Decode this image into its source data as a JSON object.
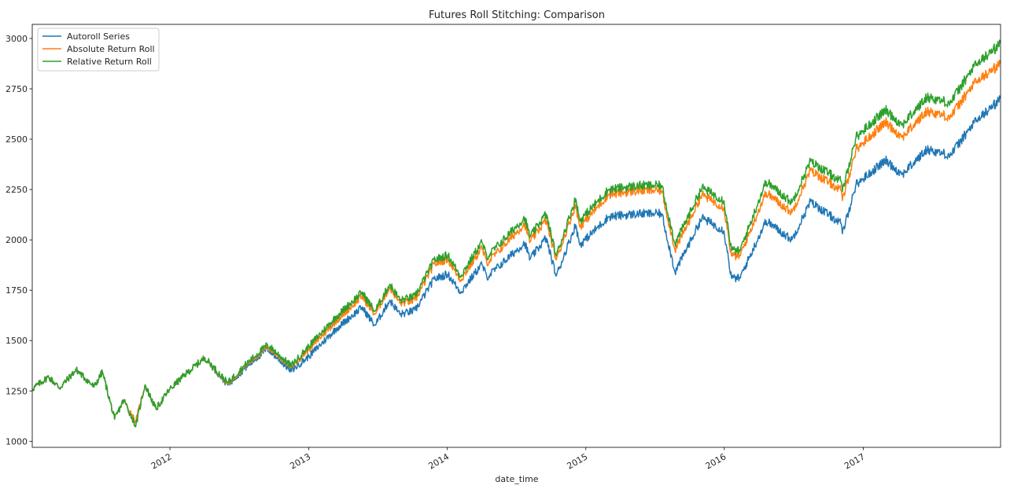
{
  "chart_data": {
    "type": "line",
    "title": "Futures Roll Stitching: Comparison",
    "xlabel": "date_time",
    "ylabel": "",
    "xlim": [
      "2011-01-03",
      "2017-12-29"
    ],
    "ylim": [
      970,
      3070
    ],
    "x_ticks": [
      {
        "date": "2012-01-01",
        "label": "2012"
      },
      {
        "date": "2013-01-01",
        "label": "2013"
      },
      {
        "date": "2014-01-01",
        "label": "2014"
      },
      {
        "date": "2015-01-01",
        "label": "2015"
      },
      {
        "date": "2016-01-01",
        "label": "2016"
      },
      {
        "date": "2017-01-01",
        "label": "2017"
      }
    ],
    "y_ticks": [
      1000,
      1250,
      1500,
      1750,
      2000,
      2250,
      2500,
      2750,
      3000
    ],
    "grid": false,
    "legend_position": "top-left",
    "series": [
      {
        "name": "Autoroll Series",
        "color": "#1f77b4",
        "points": [
          [
            "2011-01-03",
            1260
          ],
          [
            "2011-02-15",
            1320
          ],
          [
            "2011-03-16",
            1265
          ],
          [
            "2011-04-29",
            1355
          ],
          [
            "2011-06-15",
            1270
          ],
          [
            "2011-07-07",
            1345
          ],
          [
            "2011-08-08",
            1110
          ],
          [
            "2011-09-01",
            1205
          ],
          [
            "2011-10-03",
            1095
          ],
          [
            "2011-10-27",
            1280
          ],
          [
            "2011-11-25",
            1160
          ],
          [
            "2011-12-30",
            1255
          ],
          [
            "2012-02-15",
            1340
          ],
          [
            "2012-04-02",
            1415
          ],
          [
            "2012-06-01",
            1280
          ],
          [
            "2012-07-15",
            1360
          ],
          [
            "2012-09-14",
            1460
          ],
          [
            "2012-11-15",
            1350
          ],
          [
            "2012-12-31",
            1420
          ],
          [
            "2013-03-15",
            1560
          ],
          [
            "2013-05-21",
            1665
          ],
          [
            "2013-06-24",
            1575
          ],
          [
            "2013-08-02",
            1700
          ],
          [
            "2013-08-30",
            1630
          ],
          [
            "2013-10-08",
            1650
          ],
          [
            "2013-11-27",
            1805
          ],
          [
            "2014-01-02",
            1830
          ],
          [
            "2014-02-05",
            1740
          ],
          [
            "2014-04-02",
            1880
          ],
          [
            "2014-04-15",
            1815
          ],
          [
            "2014-07-24",
            1985
          ],
          [
            "2014-08-07",
            1905
          ],
          [
            "2014-09-18",
            2010
          ],
          [
            "2014-10-15",
            1820
          ],
          [
            "2014-12-05",
            2075
          ],
          [
            "2014-12-16",
            1975
          ],
          [
            "2015-03-02",
            2115
          ],
          [
            "2015-05-21",
            2130
          ],
          [
            "2015-07-20",
            2130
          ],
          [
            "2015-08-24",
            1840
          ],
          [
            "2015-11-03",
            2110
          ],
          [
            "2015-12-31",
            2045
          ],
          [
            "2016-01-20",
            1810
          ],
          [
            "2016-02-11",
            1810
          ],
          [
            "2016-04-20",
            2095
          ],
          [
            "2016-06-27",
            2000
          ],
          [
            "2016-08-15",
            2190
          ],
          [
            "2016-11-04",
            2080
          ],
          [
            "2016-11-07",
            2030
          ],
          [
            "2016-12-13",
            2275
          ],
          [
            "2017-03-01",
            2395
          ],
          [
            "2017-04-13",
            2325
          ],
          [
            "2017-06-19",
            2450
          ],
          [
            "2017-08-18",
            2420
          ],
          [
            "2017-10-20",
            2580
          ],
          [
            "2017-12-29",
            2700
          ]
        ]
      },
      {
        "name": "Absolute Return Roll",
        "color": "#ff7f0e",
        "points": [
          [
            "2011-01-03",
            1260
          ],
          [
            "2011-02-15",
            1320
          ],
          [
            "2011-03-16",
            1265
          ],
          [
            "2011-04-29",
            1355
          ],
          [
            "2011-06-15",
            1270
          ],
          [
            "2011-07-07",
            1345
          ],
          [
            "2011-08-08",
            1110
          ],
          [
            "2011-09-01",
            1205
          ],
          [
            "2011-10-03",
            1095
          ],
          [
            "2011-10-27",
            1280
          ],
          [
            "2011-11-25",
            1160
          ],
          [
            "2011-12-30",
            1255
          ],
          [
            "2012-02-15",
            1340
          ],
          [
            "2012-04-02",
            1415
          ],
          [
            "2012-06-01",
            1285
          ],
          [
            "2012-07-15",
            1370
          ],
          [
            "2012-09-14",
            1470
          ],
          [
            "2012-11-15",
            1370
          ],
          [
            "2012-12-31",
            1455
          ],
          [
            "2013-03-15",
            1600
          ],
          [
            "2013-05-21",
            1720
          ],
          [
            "2013-06-24",
            1630
          ],
          [
            "2013-08-02",
            1765
          ],
          [
            "2013-08-30",
            1685
          ],
          [
            "2013-10-08",
            1700
          ],
          [
            "2013-11-27",
            1880
          ],
          [
            "2014-01-02",
            1905
          ],
          [
            "2014-02-05",
            1800
          ],
          [
            "2014-04-02",
            1960
          ],
          [
            "2014-04-15",
            1885
          ],
          [
            "2014-07-24",
            2080
          ],
          [
            "2014-08-07",
            1990
          ],
          [
            "2014-09-18",
            2100
          ],
          [
            "2014-10-15",
            1900
          ],
          [
            "2014-12-05",
            2175
          ],
          [
            "2014-12-16",
            2065
          ],
          [
            "2015-03-02",
            2225
          ],
          [
            "2015-05-21",
            2245
          ],
          [
            "2015-07-20",
            2245
          ],
          [
            "2015-08-24",
            1950
          ],
          [
            "2015-11-03",
            2225
          ],
          [
            "2015-12-31",
            2160
          ],
          [
            "2016-01-20",
            1920
          ],
          [
            "2016-02-11",
            1920
          ],
          [
            "2016-04-20",
            2235
          ],
          [
            "2016-06-27",
            2135
          ],
          [
            "2016-08-15",
            2345
          ],
          [
            "2016-11-04",
            2245
          ],
          [
            "2016-11-07",
            2195
          ],
          [
            "2016-12-13",
            2450
          ],
          [
            "2017-03-01",
            2585
          ],
          [
            "2017-04-13",
            2510
          ],
          [
            "2017-06-19",
            2640
          ],
          [
            "2017-08-18",
            2610
          ],
          [
            "2017-10-20",
            2775
          ],
          [
            "2017-12-29",
            2875
          ]
        ]
      },
      {
        "name": "Relative Return Roll",
        "color": "#2ca02c",
        "points": [
          [
            "2011-01-03",
            1260
          ],
          [
            "2011-02-15",
            1320
          ],
          [
            "2011-03-16",
            1265
          ],
          [
            "2011-04-29",
            1355
          ],
          [
            "2011-06-15",
            1270
          ],
          [
            "2011-07-07",
            1345
          ],
          [
            "2011-08-08",
            1110
          ],
          [
            "2011-09-01",
            1205
          ],
          [
            "2011-10-03",
            1075
          ],
          [
            "2011-10-27",
            1280
          ],
          [
            "2011-11-25",
            1160
          ],
          [
            "2011-12-30",
            1255
          ],
          [
            "2012-02-15",
            1340
          ],
          [
            "2012-04-02",
            1415
          ],
          [
            "2012-06-01",
            1290
          ],
          [
            "2012-07-15",
            1375
          ],
          [
            "2012-09-14",
            1480
          ],
          [
            "2012-11-15",
            1375
          ],
          [
            "2012-12-31",
            1470
          ],
          [
            "2013-03-15",
            1620
          ],
          [
            "2013-05-21",
            1740
          ],
          [
            "2013-06-24",
            1645
          ],
          [
            "2013-08-02",
            1780
          ],
          [
            "2013-08-30",
            1700
          ],
          [
            "2013-10-08",
            1720
          ],
          [
            "2013-11-27",
            1900
          ],
          [
            "2014-01-02",
            1925
          ],
          [
            "2014-02-05",
            1820
          ],
          [
            "2014-04-02",
            1990
          ],
          [
            "2014-04-15",
            1915
          ],
          [
            "2014-07-24",
            2110
          ],
          [
            "2014-08-07",
            2015
          ],
          [
            "2014-09-18",
            2130
          ],
          [
            "2014-10-15",
            1920
          ],
          [
            "2014-12-05",
            2205
          ],
          [
            "2014-12-16",
            2095
          ],
          [
            "2015-03-02",
            2250
          ],
          [
            "2015-05-21",
            2270
          ],
          [
            "2015-07-20",
            2270
          ],
          [
            "2015-08-24",
            1980
          ],
          [
            "2015-11-03",
            2260
          ],
          [
            "2015-12-31",
            2195
          ],
          [
            "2016-01-20",
            1950
          ],
          [
            "2016-02-11",
            1945
          ],
          [
            "2016-04-20",
            2290
          ],
          [
            "2016-06-27",
            2185
          ],
          [
            "2016-08-15",
            2390
          ],
          [
            "2016-11-04",
            2290
          ],
          [
            "2016-11-07",
            2240
          ],
          [
            "2016-12-13",
            2510
          ],
          [
            "2017-03-01",
            2645
          ],
          [
            "2017-04-13",
            2570
          ],
          [
            "2017-06-19",
            2710
          ],
          [
            "2017-08-18",
            2680
          ],
          [
            "2017-10-20",
            2860
          ],
          [
            "2017-12-29",
            2975
          ]
        ]
      }
    ]
  }
}
